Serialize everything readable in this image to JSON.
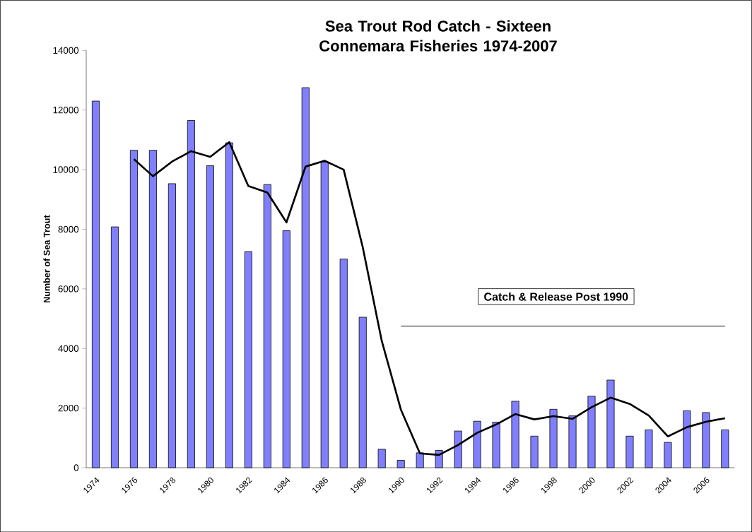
{
  "chart_data": {
    "type": "bar",
    "title": "Sea Trout Rod Catch - Sixteen Connemara Fisheries 1974-2007",
    "ylabel": "Number of Sea Trout",
    "categories": [
      "1974",
      null,
      "1976",
      null,
      "1978",
      null,
      "1980",
      null,
      "1982",
      null,
      "1984",
      null,
      "1986",
      null,
      "1988",
      null,
      "1990",
      null,
      "1992",
      null,
      "1994",
      null,
      "1996",
      null,
      "1998",
      null,
      "2000",
      null,
      "2002",
      null,
      "2004",
      null,
      "2006",
      null
    ],
    "series": [
      {
        "color": "#8080ff",
        "values": [
          12300,
          8080,
          10650,
          10650,
          9530,
          11650,
          10130,
          10900,
          7250,
          9500,
          7950,
          12750,
          10250,
          7000,
          5050,
          620,
          250,
          500,
          580,
          1230,
          1560,
          1530,
          2230,
          1060,
          1960,
          1740,
          2400,
          2940,
          1060,
          1270,
          850,
          1910,
          1850,
          1270
        ]
      },
      {
        "type": "line",
        "color": "#000000",
        "values": [
          null,
          null,
          10350,
          9780,
          10270,
          10620,
          10430,
          10920,
          9450,
          9230,
          8230,
          10100,
          10300,
          10000,
          7400,
          4250,
          1950,
          480,
          430,
          760,
          1170,
          1450,
          1800,
          1620,
          1730,
          1640,
          2030,
          2350,
          2140,
          1750,
          1050,
          1360,
          1540,
          1660
        ]
      },
      {
        "type": "line",
        "color": "#000000",
        "values": [
          null,
          null,
          null,
          null,
          null,
          null,
          null,
          null,
          null,
          null,
          null,
          null,
          null,
          null,
          null,
          null,
          4750,
          4750,
          4750,
          4750,
          4750,
          4750,
          4750,
          4750,
          4750,
          4750,
          4750,
          4750,
          4750,
          4750,
          4750,
          4750,
          4750,
          4750
        ]
      }
    ],
    "ylim": [
      0,
      14000
    ],
    "yticks": [
      0,
      2000,
      4000,
      6000,
      8000,
      10000,
      12000,
      14000
    ],
    "annotations": [
      "Catch & Release Post 1990"
    ],
    "grid": false
  }
}
